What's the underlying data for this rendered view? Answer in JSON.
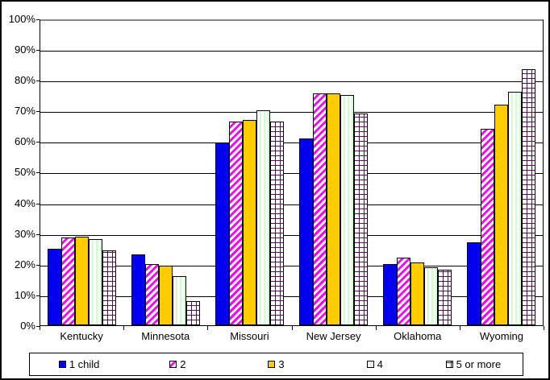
{
  "chart_data": {
    "type": "bar",
    "title": "",
    "xlabel": "",
    "ylabel": "",
    "categories": [
      "Kentucky",
      "Minnesota",
      "Missouri",
      "New Jersey",
      "Oklahoma",
      "Wyoming"
    ],
    "series": [
      {
        "name": "1 child",
        "pattern": "solid-blue",
        "values": [
          25,
          23,
          59.5,
          61,
          20,
          27
        ]
      },
      {
        "name": "2",
        "pattern": "magenta-diagonal-stripes",
        "values": [
          28.5,
          20,
          66.5,
          75.5,
          22,
          64
        ]
      },
      {
        "name": "3",
        "pattern": "solid-gold",
        "values": [
          29,
          19.5,
          67,
          75.5,
          20.5,
          72
        ]
      },
      {
        "name": "4",
        "pattern": "light-green-vertical-stripes",
        "values": [
          28,
          16,
          70,
          75,
          19,
          76
        ]
      },
      {
        "name": "5 or more",
        "pattern": "purple-grid",
        "values": [
          24.5,
          8,
          66.5,
          69,
          18,
          83.5
        ]
      }
    ],
    "ylim": [
      0,
      100
    ],
    "ytick_step": 10,
    "ytick_labels": [
      "0%",
      "10%",
      "20%",
      "30%",
      "40%",
      "50%",
      "60%",
      "70%",
      "80%",
      "90%",
      "100%"
    ],
    "grid": "horizontal",
    "legend_position": "bottom"
  },
  "colors": {
    "series_blue": "#0000EE",
    "series_magenta": "#FF00FF",
    "series_gold": "#FFCC00",
    "series_light_green": "#CCFFCC",
    "series_purple": "#660066",
    "gridline": "#000000",
    "top_gridline": "#888888",
    "border": "#000000",
    "background": "#FFFFFF"
  }
}
